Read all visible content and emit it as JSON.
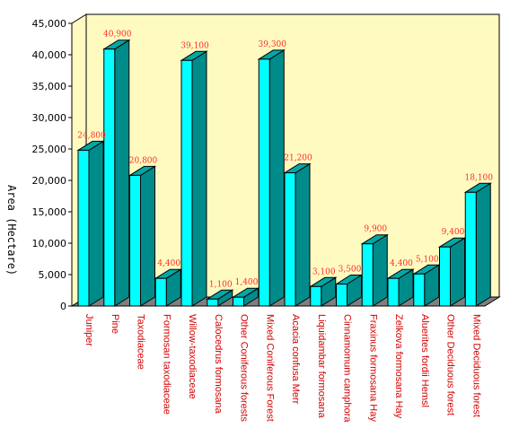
{
  "chart_data": {
    "type": "bar",
    "title": "",
    "xlabel": "",
    "ylabel": "Area (Hectare)",
    "ylim": [
      0,
      45000
    ],
    "y_ticks": [
      "0",
      "5,000",
      "10,000",
      "15,000",
      "20,000",
      "25,000",
      "30,000",
      "35,000",
      "40,000",
      "45,000"
    ],
    "grid": false,
    "legend": "none",
    "categories": [
      "Juniper",
      "Pine",
      "Taxodiaceae",
      "Formosan taxodiaceae",
      "Willow-taxodiaceae",
      "Calocedrus formosana",
      "Other Coniferous forests",
      "Mixed Coniferous Forest",
      "Acacia confusa Merr",
      "Liquidambar formosana",
      "Cinnamomum camphora",
      "Fraxinus formosana Hay",
      "Zelkova formosana Hay",
      "Aluerites fordii Hemsl",
      "Other Deciduous forest",
      "Mixed Deciduous forest"
    ],
    "values": [
      24800,
      40900,
      20800,
      4400,
      39100,
      1100,
      1400,
      39300,
      21200,
      3100,
      3500,
      9900,
      4400,
      5100,
      9400,
      18100
    ],
    "data_labels": [
      "24,800",
      "40,900",
      "20,800",
      "4,400",
      "39,100",
      "1,100",
      "1,400",
      "39,300",
      "21,200",
      "3,100",
      "3,500",
      "9,900",
      "4,400",
      "5,100",
      "9,400",
      "18,100"
    ],
    "colors": {
      "bar_front": "#00ffff",
      "bar_side": "#008b8b",
      "bar_top": "#00a8a8",
      "wall": "#fffbc0",
      "floor": "#7f7f7f",
      "axis": "#000000",
      "category_text": "#d40000",
      "data_label": "#ff2a2a"
    }
  }
}
